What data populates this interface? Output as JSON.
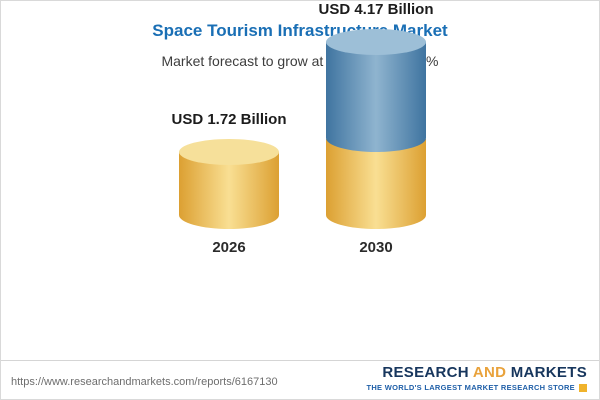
{
  "chart_data": {
    "type": "bar",
    "variant": "cylinder-3d",
    "title": "Space Tourism Infrastructure Market",
    "subtitle": "Market forecast to grow at a CAGR of 24.8%",
    "categories": [
      "2026",
      "2030"
    ],
    "values": [
      1.72,
      4.17
    ],
    "unit": "USD Billion",
    "data_labels": [
      "USD 1.72 Billion",
      "USD 4.17 Billion"
    ],
    "xlabel": "",
    "ylabel": "",
    "ylim": [
      0,
      4.5
    ],
    "grid": false,
    "legend": false,
    "colors": {
      "base_segment": "#f2cc6a",
      "growth_segment": "#6f9fc4",
      "title": "#1a6fb5"
    },
    "notes": "2030 bar is stacked: yellow base equals the 2026 value, blue top is the growth portion"
  },
  "footer": {
    "url": "https://www.researchandmarkets.com/reports/6167130",
    "logo": {
      "word1": "RESEARCH",
      "word2": "AND",
      "word3": "MARKETS",
      "tagline": "THE WORLD'S LARGEST MARKET RESEARCH STORE"
    }
  }
}
